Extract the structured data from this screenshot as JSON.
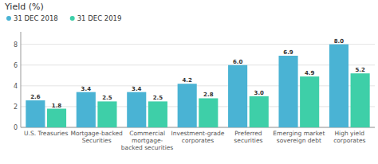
{
  "chart_data": {
    "type": "bar",
    "title": "Yield (%)",
    "categories": [
      "U.S. Treasuries",
      "Mortgage-backed\nSecurities",
      "Commercial\nmortgage-\nbacked securities",
      "Investment-grade\ncorporates",
      "Preferred\nsecurities",
      "Emerging market\nsovereign debt",
      "High yield\ncorporates"
    ],
    "series": [
      {
        "name": "31 DEC 2018",
        "color": "#4ab3d4",
        "values": [
          2.6,
          3.4,
          3.4,
          4.2,
          6.0,
          6.9,
          8.0
        ],
        "value_labels": [
          "2.6",
          "3.4",
          "3.4",
          "4.2",
          "6.0",
          "6.9",
          "8.0"
        ]
      },
      {
        "name": "31 DEC 2019",
        "color": "#3ecfa8",
        "values": [
          1.8,
          2.5,
          2.5,
          2.8,
          3.0,
          4.9,
          5.2
        ],
        "value_labels": [
          "1.8",
          "2.5",
          "2.5",
          "2.8",
          "3.0",
          "4.9",
          "5.2"
        ]
      }
    ],
    "ylim": [
      0,
      9.2
    ],
    "yticks": [
      0,
      2,
      4,
      6,
      8
    ],
    "grid": true,
    "data_labels": true,
    "legend": "upper left"
  }
}
